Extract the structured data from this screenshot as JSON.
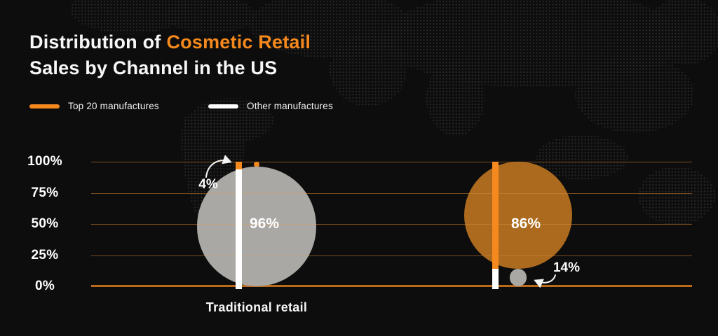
{
  "title": {
    "line1_white": "Distribution of",
    "line1_accent": "Cosmetic Retail",
    "line2": "Sales by Channel in the US"
  },
  "legend": {
    "items": [
      {
        "label": "Top 20 manufactures",
        "color": "#f5891d"
      },
      {
        "label": "Other manufactures",
        "color": "#ffffff"
      }
    ]
  },
  "colors": {
    "background": "#0d0d0d",
    "accent_orange": "#f5891d",
    "muted_orange": "#ab6a1e",
    "bubble_gray": "#a9a8a4",
    "bar_white": "#ffffff",
    "axis_zero_line": "#bc6a1a",
    "gridline_dim": "#46290d",
    "gridline_overlay": "rgba(245,160,70,0.30)",
    "text_white": "#f7f7f7"
  },
  "chart_data": {
    "type": "bar",
    "variant": "stacked percentage bars with proportional bubbles",
    "title": "Distribution of Cosmetic Retail Sales by Channel in the US",
    "categories": [
      "Traditional retail",
      ""
    ],
    "series": [
      {
        "name": "Top 20 manufactures",
        "color": "#f5891d",
        "values": [
          4,
          86
        ]
      },
      {
        "name": "Other manufactures",
        "color": "#ffffff",
        "values": [
          96,
          14
        ]
      }
    ],
    "big_bubble_labels": [
      "96%",
      "86%"
    ],
    "small_bubble_labels": [
      "4%",
      "14%"
    ],
    "yticks": [
      "100%",
      "75%",
      "50%",
      "25%",
      "0%"
    ],
    "ylim": [
      0,
      100
    ],
    "grid": true,
    "legend_position": "top-left"
  }
}
